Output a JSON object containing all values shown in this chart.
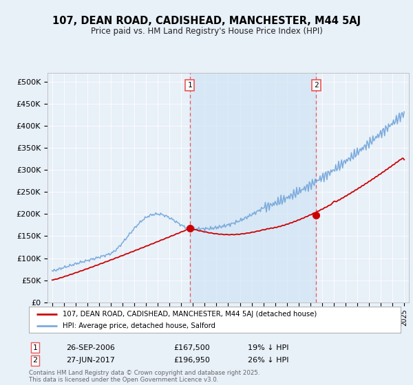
{
  "title": "107, DEAN ROAD, CADISHEAD, MANCHESTER, M44 5AJ",
  "subtitle": "Price paid vs. HM Land Registry's House Price Index (HPI)",
  "background_color": "#e8f0f8",
  "plot_bg_color": "#e8f0f8",
  "ylim": [
    0,
    520000
  ],
  "yticks": [
    0,
    50000,
    100000,
    150000,
    200000,
    250000,
    300000,
    350000,
    400000,
    450000,
    500000
  ],
  "x_start_year": 1995,
  "x_end_year": 2025,
  "marker1_x": 2006.74,
  "marker2_x": 2017.49,
  "marker1_price": 167500,
  "marker2_price": 196950,
  "legend1": "107, DEAN ROAD, CADISHEAD, MANCHESTER, M44 5AJ (detached house)",
  "legend2": "HPI: Average price, detached house, Salford",
  "table_row1": [
    "1",
    "26-SEP-2006",
    "£167,500",
    "19% ↓ HPI"
  ],
  "table_row2": [
    "2",
    "27-JUN-2017",
    "£196,950",
    "26% ↓ HPI"
  ],
  "footnote": "Contains HM Land Registry data © Crown copyright and database right 2025.\nThis data is licensed under the Open Government Licence v3.0.",
  "red_color": "#cc0000",
  "blue_color": "#7aaadd",
  "shade_color": "#d0e4f4",
  "dashed_color": "#ee5555"
}
